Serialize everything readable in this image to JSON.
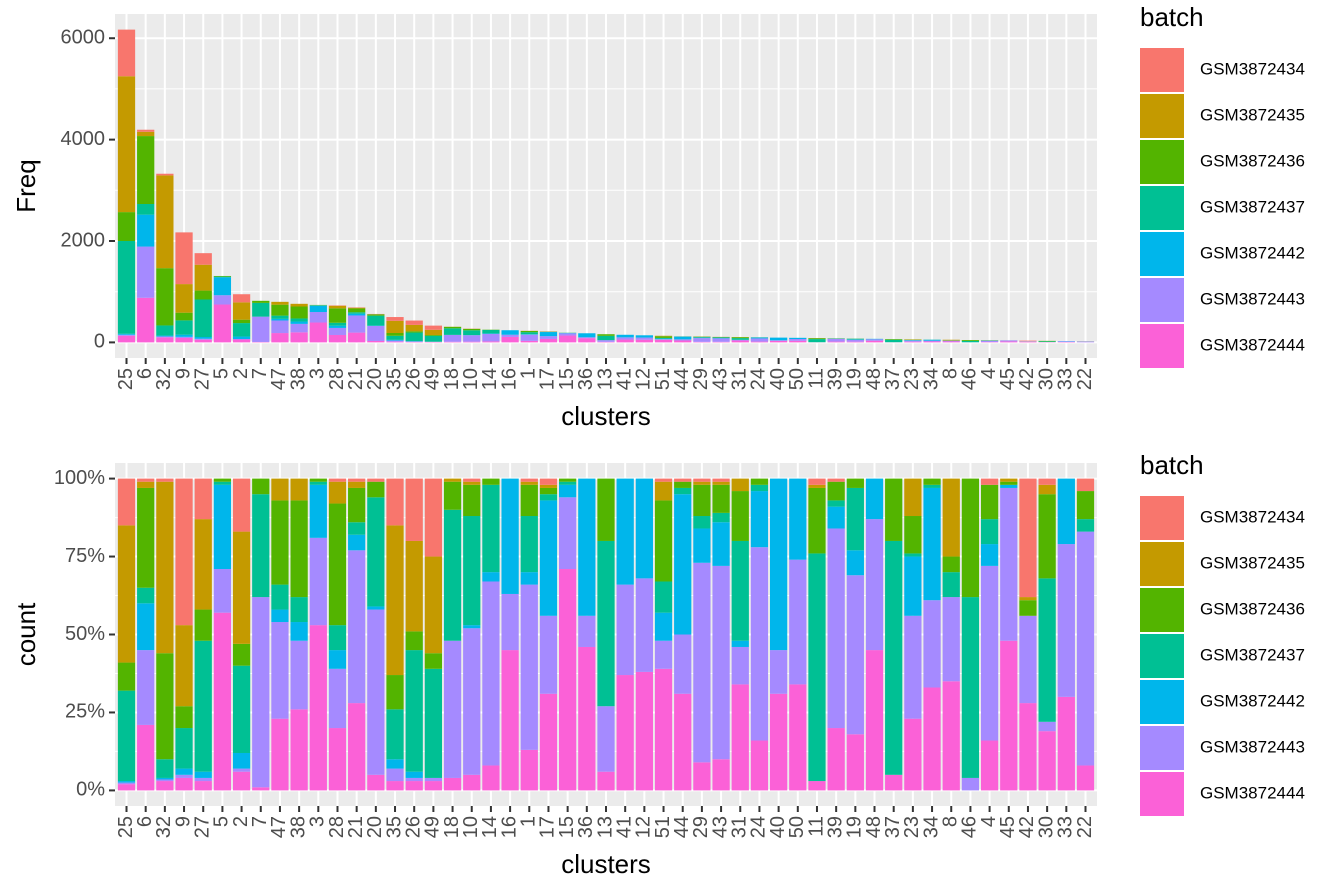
{
  "chart_data": [
    {
      "type": "bar",
      "stacking": "stack",
      "x_label": "clusters",
      "y_label": "Freq",
      "legend_title": "batch",
      "legend": "right",
      "grid": true,
      "minor_grid": true,
      "categories": [
        "25",
        "6",
        "32",
        "9",
        "27",
        "5",
        "2",
        "7",
        "47",
        "38",
        "3",
        "28",
        "21",
        "20",
        "35",
        "26",
        "49",
        "18",
        "10",
        "14",
        "16",
        "1",
        "17",
        "15",
        "36",
        "13",
        "41",
        "12",
        "51",
        "44",
        "29",
        "43",
        "31",
        "24",
        "40",
        "50",
        "11",
        "39",
        "19",
        "48",
        "37",
        "23",
        "34",
        "8",
        "46",
        "4",
        "45",
        "42",
        "30",
        "33",
        "22"
      ],
      "ylim": [
        -308,
        6478
      ],
      "yticks": [
        0,
        2000,
        4000,
        6000
      ],
      "series": [
        {
          "name": "GSM3872434",
          "color": "#F8766D",
          "values": [
            920,
            40,
            33,
            1020,
            228,
            0,
            160,
            0,
            0,
            0,
            0,
            7,
            7,
            6,
            75,
            86,
            83,
            0,
            3,
            0,
            0,
            2,
            4,
            0,
            0,
            0,
            0,
            0,
            1,
            1,
            1,
            1,
            0,
            0,
            0,
            0,
            2,
            1,
            0,
            0,
            0,
            0,
            0,
            0,
            0,
            1,
            0,
            13,
            1,
            0,
            1
          ]
        },
        {
          "name": "GSM3872435",
          "color": "#C49A00",
          "values": [
            2680,
            85,
            1830,
            564,
            510,
            0,
            342,
            0,
            56,
            53,
            0,
            51,
            14,
            0,
            240,
            125,
            102,
            3,
            3,
            0,
            0,
            2,
            2,
            0,
            0,
            0,
            0,
            0,
            8,
            0,
            1,
            1,
            4,
            0,
            0,
            0,
            1,
            0,
            0,
            0,
            0,
            7,
            0,
            13,
            0,
            0,
            0,
            0,
            1,
            0,
            0
          ]
        },
        {
          "name": "GSM3872436",
          "color": "#53B400",
          "values": [
            570,
            1340,
            1130,
            152,
            176,
            13,
            67,
            41,
            216,
            236,
            7,
            285,
            76,
            28,
            55,
            26,
            17,
            28,
            27,
            5,
            0,
            23,
            4,
            2,
            0,
            32,
            0,
            0,
            34,
            2,
            12,
            10,
            17,
            2,
            0,
            0,
            18,
            5,
            2,
            0,
            13,
            7,
            1,
            3,
            17,
            5,
            1,
            2,
            8,
            0,
            2
          ]
        },
        {
          "name": "GSM3872437",
          "color": "#00C094",
          "values": [
            1830,
            210,
            200,
            282,
            740,
            13,
            266,
            271,
            64,
            61,
            7,
            58,
            28,
            196,
            80,
            168,
            116,
            130,
            95,
            70,
            0,
            41,
            4,
            2,
            0,
            85,
            0,
            0,
            13,
            2,
            5,
            3,
            34,
            2,
            0,
            0,
            62,
            2,
            15,
            0,
            49,
            1,
            1,
            4,
            26,
            3,
            0,
            0,
            14,
            0,
            1
          ]
        },
        {
          "name": "GSM3872442",
          "color": "#00B6EB",
          "values": [
            20,
            630,
            17,
            43,
            35,
            354,
            48,
            0,
            32,
            46,
            126,
            44,
            35,
            6,
            15,
            9,
            0,
            0,
            3,
            8,
            89,
            9,
            81,
            8,
            79,
            0,
            51,
            45,
            12,
            54,
            13,
            15,
            2,
            18,
            52,
            23,
            0,
            6,
            6,
            9,
            0,
            11,
            20,
            0,
            0,
            3,
            0,
            0,
            0,
            5,
            0
          ]
        },
        {
          "name": "GSM3872443",
          "color": "#A58AFF",
          "values": [
            20,
            1010,
            17,
            22,
            18,
            183,
            10,
            500,
            248,
            167,
            207,
            139,
            338,
            297,
            20,
            4,
            3,
            136,
            127,
            148,
            43,
            122,
            55,
            44,
            18,
            34,
            43,
            42,
            12,
            23,
            74,
            68,
            13,
            62,
            13,
            36,
            0,
            51,
            38,
            29,
            0,
            20,
            15,
            14,
            2,
            24,
            20,
            10,
            1,
            12,
            15
          ]
        },
        {
          "name": "GSM3872444",
          "color": "#FB61D7",
          "values": [
            130,
            880,
            100,
            87,
            53,
            747,
            57,
            8,
            184,
            198,
            392,
            146,
            193,
            28,
            15,
            13,
            10,
            12,
            14,
            20,
            108,
            30,
            68,
            135,
            83,
            10,
            56,
            53,
            51,
            37,
            10,
            11,
            36,
            16,
            29,
            31,
            3,
            16,
            14,
            32,
            3,
            14,
            18,
            18,
            0,
            7,
            19,
            10,
            6,
            8,
            2
          ]
        }
      ]
    },
    {
      "type": "bar",
      "stacking": "stack",
      "x_label": "clusters",
      "y_label": "count",
      "legend_title": "batch",
      "legend": "right",
      "grid": true,
      "minor_grid": true,
      "categories": [
        "25",
        "6",
        "32",
        "9",
        "27",
        "5",
        "2",
        "7",
        "47",
        "38",
        "3",
        "28",
        "21",
        "20",
        "35",
        "26",
        "49",
        "18",
        "10",
        "14",
        "16",
        "1",
        "17",
        "15",
        "36",
        "13",
        "41",
        "12",
        "51",
        "44",
        "29",
        "43",
        "31",
        "24",
        "40",
        "50",
        "11",
        "39",
        "19",
        "48",
        "37",
        "23",
        "34",
        "8",
        "46",
        "4",
        "45",
        "42",
        "30",
        "33",
        "22"
      ],
      "ylim": [
        -5,
        105
      ],
      "yticks": [
        {
          "value": 0,
          "label": "0%"
        },
        {
          "value": 25,
          "label": "25%"
        },
        {
          "value": 50,
          "label": "50%"
        },
        {
          "value": 75,
          "label": "75%"
        },
        {
          "value": 100,
          "label": "100%"
        }
      ],
      "series": [
        {
          "name": "GSM3872434",
          "color": "#F8766D",
          "values": [
            15,
            1,
            1,
            47,
            13,
            0,
            17,
            0,
            0,
            0,
            0,
            1,
            1,
            1,
            15,
            20,
            25,
            0,
            1,
            0,
            0,
            1,
            2,
            0,
            0,
            0,
            0,
            0,
            1,
            1,
            1,
            1,
            0,
            0,
            0,
            0,
            2,
            1,
            0,
            0,
            0,
            0,
            0,
            0,
            0,
            2,
            0,
            38,
            2,
            0,
            4
          ]
        },
        {
          "name": "GSM3872435",
          "color": "#C49A00",
          "values": [
            44,
            2,
            55,
            26,
            29,
            0,
            36,
            0,
            7,
            7,
            0,
            7,
            2,
            0,
            48,
            29,
            31,
            1,
            1,
            0,
            0,
            1,
            1,
            0,
            0,
            0,
            0,
            0,
            6,
            0,
            1,
            1,
            4,
            0,
            0,
            0,
            1,
            0,
            0,
            0,
            0,
            12,
            0,
            25,
            0,
            0,
            1,
            1,
            3,
            0,
            0
          ]
        },
        {
          "name": "GSM3872436",
          "color": "#53B400",
          "values": [
            9,
            32,
            34,
            7,
            10,
            1,
            7,
            5,
            27,
            31,
            1,
            39,
            11,
            5,
            11,
            6,
            5,
            9,
            10,
            2,
            0,
            10,
            2,
            1,
            0,
            20,
            0,
            0,
            26,
            2,
            10,
            9,
            16,
            2,
            0,
            0,
            21,
            6,
            3,
            0,
            20,
            12,
            2,
            5,
            38,
            11,
            1,
            5,
            27,
            0,
            9
          ]
        },
        {
          "name": "GSM3872437",
          "color": "#00C094",
          "values": [
            29,
            5,
            6,
            13,
            42,
            1,
            28,
            33,
            8,
            8,
            1,
            8,
            4,
            35,
            16,
            39,
            35,
            42,
            35,
            28,
            0,
            18,
            2,
            1,
            0,
            53,
            0,
            0,
            10,
            2,
            4,
            3,
            32,
            2,
            0,
            0,
            73,
            2,
            20,
            0,
            75,
            1,
            1,
            8,
            58,
            8,
            0,
            0,
            46,
            0,
            4
          ]
        },
        {
          "name": "GSM3872442",
          "color": "#00B6EB",
          "values": [
            0.5,
            15,
            0.5,
            2,
            2,
            27,
            5,
            0,
            4,
            6,
            17,
            6,
            5,
            1,
            3,
            2,
            0,
            0,
            1,
            3,
            37,
            4,
            37,
            4,
            44,
            0,
            34,
            32,
            9,
            45,
            11,
            14,
            2,
            18,
            55,
            26,
            0,
            7,
            8,
            13,
            0,
            19,
            36,
            0,
            0,
            7,
            1,
            0,
            0,
            21,
            0
          ]
        },
        {
          "name": "GSM3872443",
          "color": "#A58AFF",
          "values": [
            0.5,
            24,
            0.5,
            1,
            1,
            14,
            1,
            61,
            31,
            22,
            28,
            19,
            49,
            53,
            4,
            1,
            1,
            44,
            47,
            59,
            18,
            53,
            25,
            23,
            10,
            21,
            29,
            30,
            9,
            19,
            64,
            62,
            12,
            62,
            14,
            40,
            0,
            64,
            51,
            42,
            0,
            33,
            28,
            27,
            4,
            56,
            49,
            28,
            3,
            49,
            75
          ]
        },
        {
          "name": "GSM3872444",
          "color": "#FB61D7",
          "values": [
            2,
            21,
            3,
            4,
            3,
            57,
            6,
            1,
            23,
            26,
            53,
            20,
            28,
            5,
            3,
            3,
            3,
            4,
            5,
            8,
            45,
            13,
            31,
            71,
            46,
            6,
            37,
            38,
            39,
            31,
            9,
            10,
            34,
            16,
            31,
            34,
            3,
            20,
            18,
            45,
            5,
            23,
            33,
            35,
            0,
            16,
            48,
            28,
            19,
            30,
            8
          ]
        }
      ]
    }
  ]
}
